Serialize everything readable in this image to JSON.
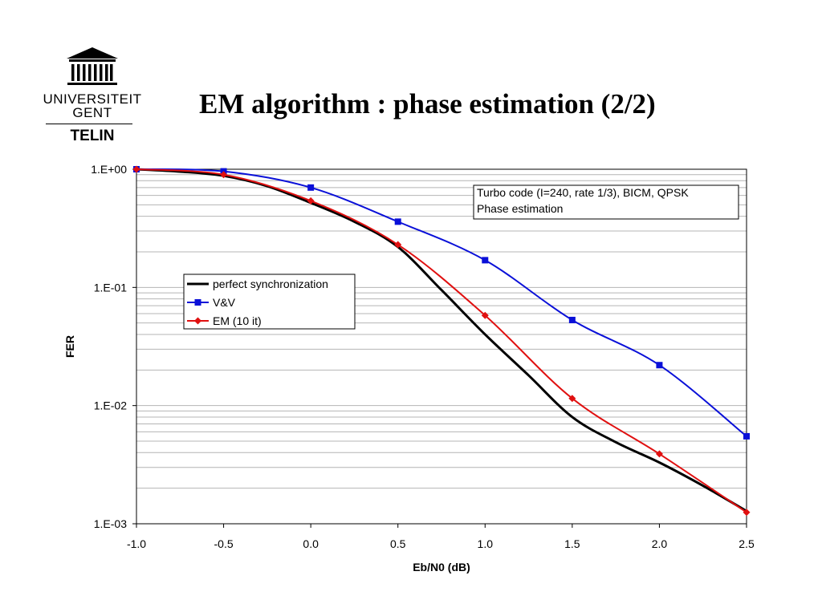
{
  "logo": {
    "line1": "UNIVERSITEIT",
    "line2": "GENT",
    "department": "TELIN"
  },
  "slide_title": "EM algorithm : phase estimation (2/2)",
  "chart_data": {
    "type": "line",
    "xlabel": "Eb/N0 (dB)",
    "ylabel": "FER",
    "xlim": [
      -1.0,
      2.5
    ],
    "ylim": [
      0.001,
      1.0
    ],
    "yscale": "log",
    "x_ticks": [
      "-1.0",
      "-0.5",
      "0.0",
      "0.5",
      "1.0",
      "1.5",
      "2.0",
      "2.5"
    ],
    "y_ticks": [
      "1.E+00",
      "1.E-01",
      "1.E-02",
      "1.E-03"
    ],
    "grid": true,
    "legend_position": "center-left",
    "annotation": [
      "Turbo code  (I=240, rate 1/3), BICM, QPSK",
      "Phase estimation"
    ],
    "series": [
      {
        "name": "perfect synchronization",
        "color": "#000000",
        "marker": "none",
        "x": [
          -1.0,
          -0.75,
          -0.5,
          -0.25,
          0.0,
          0.25,
          0.5,
          0.75,
          1.0,
          1.25,
          1.5,
          1.75,
          2.0,
          2.25,
          2.5
        ],
        "y": [
          1.0,
          0.955,
          0.88,
          0.72,
          0.52,
          0.36,
          0.22,
          0.095,
          0.04,
          0.018,
          0.008,
          0.0049,
          0.0033,
          0.0021,
          0.00128
        ]
      },
      {
        "name": "V&V",
        "color": "#0a10d8",
        "marker": "square",
        "x": [
          -1.0,
          -0.5,
          0.0,
          0.5,
          1.0,
          1.5,
          2.0,
          2.5
        ],
        "y": [
          1.0,
          0.96,
          0.7,
          0.36,
          0.17,
          0.053,
          0.022,
          0.0055
        ]
      },
      {
        "name": "EM (10 it)",
        "color": "#e01010",
        "marker": "diamond",
        "x": [
          -1.0,
          -0.5,
          0.0,
          0.5,
          1.0,
          1.5,
          2.0,
          2.5
        ],
        "y": [
          1.0,
          0.9,
          0.54,
          0.23,
          0.058,
          0.0115,
          0.0039,
          0.00125
        ]
      }
    ]
  }
}
